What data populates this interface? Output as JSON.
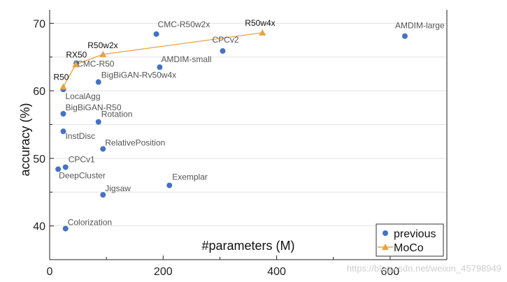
{
  "chart_data": {
    "type": "scatter",
    "xlabel": "#parameters (M)",
    "ylabel": "accuracy (%)",
    "xlim": [
      0,
      700
    ],
    "ylim": [
      35,
      72
    ],
    "xticks": [
      0,
      200,
      400,
      600
    ],
    "yticks": [
      40,
      50,
      60,
      70
    ],
    "grid": "horizontal",
    "legend_position": "bottom-right",
    "colors": {
      "previous": "#4472C4",
      "moco": "#E8A33D"
    },
    "series": [
      {
        "name": "previous",
        "marker": "circle",
        "points": [
          {
            "label": "CMC-R50w2x",
            "x": 188,
            "y": 68.4
          },
          {
            "label": "AMDIM-large",
            "x": 626,
            "y": 68.1
          },
          {
            "label": "CPCv2",
            "x": 305,
            "y": 65.9
          },
          {
            "label": "AMDIM-small",
            "x": 194,
            "y": 63.5
          },
          {
            "label": "CMC-R50",
            "x": 47,
            "y": 64.1
          },
          {
            "label": "BigBiGAN-Rv50w4x",
            "x": 86,
            "y": 61.3
          },
          {
            "label": "LocalAgg",
            "x": 24,
            "y": 60.2
          },
          {
            "label": "BigBiGAN-R50",
            "x": 24,
            "y": 56.6
          },
          {
            "label": "Rotation",
            "x": 86,
            "y": 55.4
          },
          {
            "label": "InstDisc",
            "x": 24,
            "y": 54.0
          },
          {
            "label": "RelativePosition",
            "x": 94,
            "y": 51.4
          },
          {
            "label": "CPCv1",
            "x": 28,
            "y": 48.7
          },
          {
            "label": "DeepCluster",
            "x": 15,
            "y": 48.4
          },
          {
            "label": "Exemplar",
            "x": 211,
            "y": 46.0
          },
          {
            "label": "Jigsaw",
            "x": 94,
            "y": 44.6
          },
          {
            "label": "Colorization",
            "x": 28,
            "y": 39.6
          }
        ]
      },
      {
        "name": "MoCo",
        "marker": "triangle",
        "line": true,
        "points": [
          {
            "label": "R50",
            "x": 24,
            "y": 60.6
          },
          {
            "label": "RX50",
            "x": 46,
            "y": 63.9
          },
          {
            "label": "R50w2x",
            "x": 94,
            "y": 65.4
          },
          {
            "label": "R50w4x",
            "x": 375,
            "y": 68.6
          }
        ]
      }
    ]
  },
  "legend": {
    "previous": "previous",
    "moco": "MoCo"
  },
  "watermark": "https://blog.csdn.net/weixin_45798949"
}
